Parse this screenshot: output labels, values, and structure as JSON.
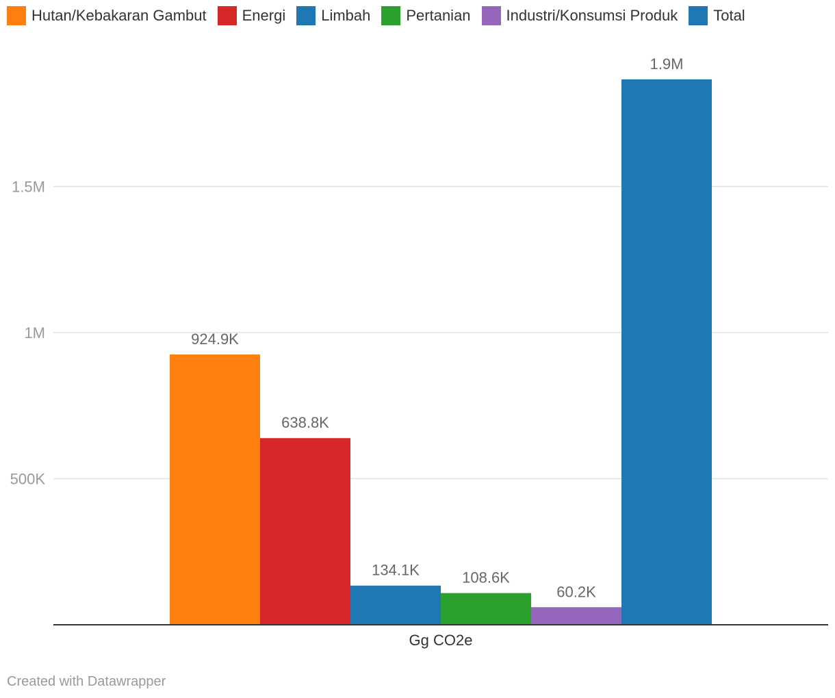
{
  "legend": [
    {
      "label": "Hutan/Kebakaran Gambut",
      "color": "#ff7f0e"
    },
    {
      "label": "Energi",
      "color": "#d62728"
    },
    {
      "label": "Limbah",
      "color": "#1f77b4"
    },
    {
      "label": "Pertanian",
      "color": "#2ca02c"
    },
    {
      "label": "Industri/Konsumsi Produk",
      "color": "#9467bd"
    },
    {
      "label": "Total",
      "color": "#1f77b4"
    }
  ],
  "chart_data": {
    "type": "bar",
    "categories": [
      "Gg CO2e"
    ],
    "series": [
      {
        "name": "Hutan/Kebakaran Gambut",
        "color": "#ff7f0e",
        "values": [
          924900
        ],
        "label": "924.9K"
      },
      {
        "name": "Energi",
        "color": "#d62728",
        "values": [
          638800
        ],
        "label": "638.8K"
      },
      {
        "name": "Limbah",
        "color": "#1f77b4",
        "values": [
          134100
        ],
        "label": "134.1K"
      },
      {
        "name": "Pertanian",
        "color": "#2ca02c",
        "values": [
          108600
        ],
        "label": "108.6K"
      },
      {
        "name": "Industri/Konsumsi Produk",
        "color": "#9467bd",
        "values": [
          60200
        ],
        "label": "60.2K"
      },
      {
        "name": "Total",
        "color": "#1f77b4",
        "values": [
          1866600
        ],
        "label": "1.9M"
      }
    ],
    "yticks": [
      {
        "value": 500000,
        "label": "500K"
      },
      {
        "value": 1000000,
        "label": "1M"
      },
      {
        "value": 1500000,
        "label": "1.5M"
      }
    ],
    "ylim": [
      0,
      2000000
    ],
    "grid": true,
    "legend_position": "top"
  },
  "footer": {
    "credit": "Created with Datawrapper"
  }
}
